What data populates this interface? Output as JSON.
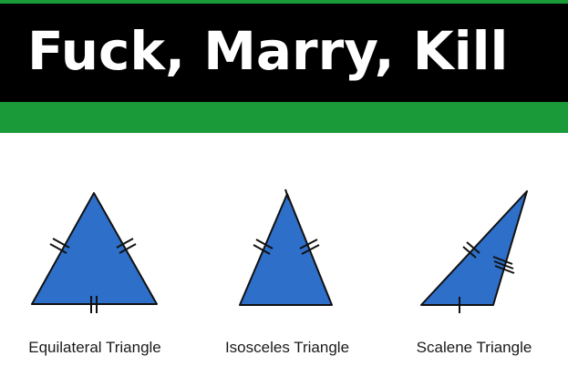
{
  "banner": {
    "title": "Fuck, Marry, Kill"
  },
  "triangles": [
    {
      "label": "Equilateral Triangle"
    },
    {
      "label": "Isosceles Triangle"
    },
    {
      "label": "Scalene Triangle"
    }
  ],
  "colors": {
    "banner_bg": "#000000",
    "band_green": "#1a9a39",
    "triangle_fill": "#2e6fc9",
    "outline": "#111111"
  }
}
